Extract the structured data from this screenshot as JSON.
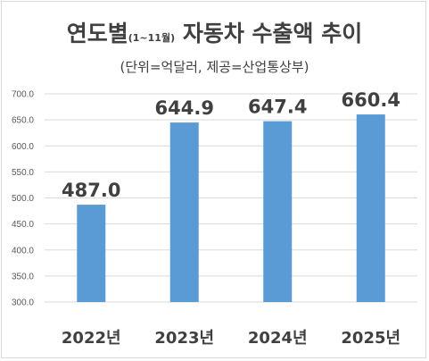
{
  "chart_data": {
    "type": "bar",
    "title_main": "연도별",
    "title_period": "(1~11월)",
    "title_rest": "자동차 수출액 추이",
    "subtitle": "(단위=억달러, 제공=산업통상부)",
    "categories": [
      "2022년",
      "2023년",
      "2024년",
      "2025년"
    ],
    "values": [
      487.0,
      644.9,
      647.4,
      660.4
    ],
    "data_labels": [
      "487.0",
      "644.9",
      "647.4",
      "660.4"
    ],
    "ylim": [
      300,
      700
    ],
    "yticks": [
      "300.0",
      "350.0",
      "400.0",
      "450.0",
      "500.0",
      "550.0",
      "600.0",
      "650.0",
      "700.0"
    ],
    "grid": true,
    "legend": "none",
    "bar_color": "#5b9bd5",
    "grid_color": "#d9d9d9"
  }
}
